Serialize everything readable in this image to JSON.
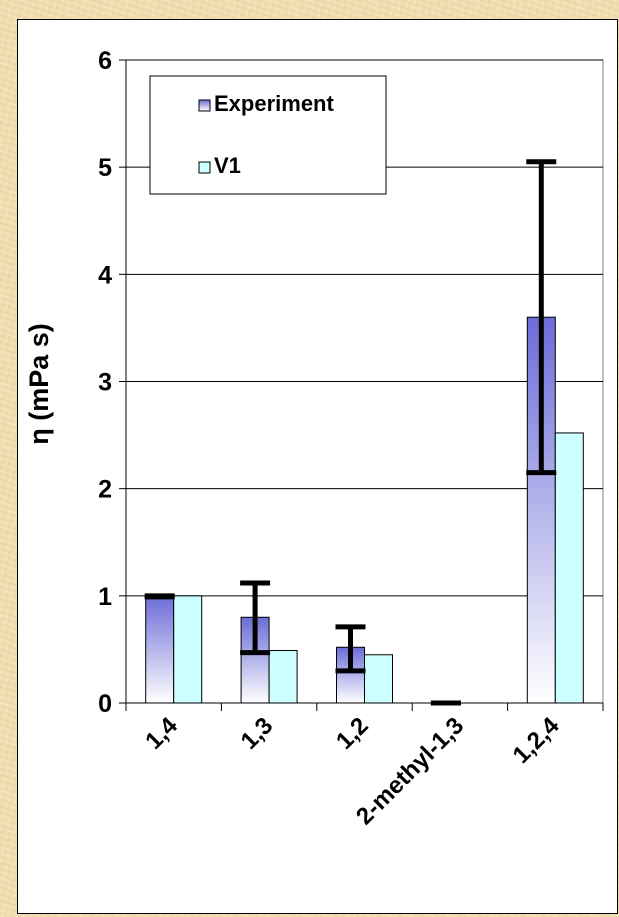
{
  "chart_data": {
    "type": "bar",
    "title": "",
    "xlabel": "",
    "ylabel": "η (mPa s)",
    "ylim": [
      0,
      6
    ],
    "yticks": [
      0,
      1,
      2,
      3,
      4,
      5,
      6
    ],
    "grid": true,
    "legend_position": "top-left",
    "categories": [
      "1,4",
      "1,3",
      "1,2",
      "2-methyl-1,3",
      "1,2,4"
    ],
    "series": [
      {
        "name": "Experiment",
        "values": [
          1.0,
          0.8,
          0.52,
          0.0,
          3.6
        ],
        "error_low": [
          0.99,
          0.47,
          0.3,
          0.0,
          2.15
        ],
        "error_high": [
          1.0,
          1.12,
          0.71,
          0.0,
          5.05
        ],
        "color_top": "#6c6cd8",
        "color_bottom": "#ffffff"
      },
      {
        "name": "V1",
        "values": [
          1.0,
          0.49,
          0.45,
          null,
          2.52
        ],
        "color": "#ccffff"
      }
    ]
  }
}
